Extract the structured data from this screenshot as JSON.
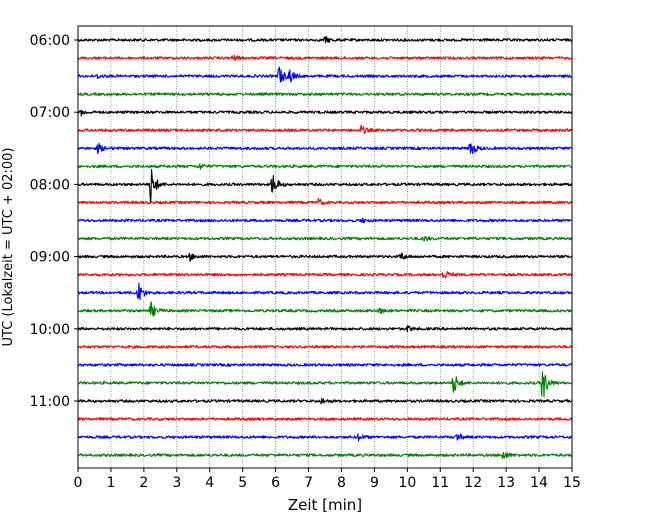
{
  "chart_data": {
    "type": "line",
    "subtype": "helicorder",
    "xlabel": "Zeit  [min]",
    "ylabel": "UTC (Lokalzeit = UTC + 02:00)",
    "xlim": [
      0,
      15
    ],
    "x_ticks": [
      0,
      1,
      2,
      3,
      4,
      5,
      6,
      7,
      8,
      9,
      10,
      11,
      12,
      13,
      14,
      15
    ],
    "grid": "vertical dotted lines at each minute",
    "row_interval_minutes": 15,
    "trace_colors": [
      "#000000",
      "#ff0000",
      "#0000ff",
      "#008000"
    ],
    "y_ticks": [
      "06:00",
      "07:00",
      "08:00",
      "09:00",
      "10:00",
      "11:00"
    ],
    "rows": [
      "06:00",
      "06:15",
      "06:30",
      "06:45",
      "07:00",
      "07:15",
      "07:30",
      "07:45",
      "08:00",
      "08:15",
      "08:30",
      "08:45",
      "09:00",
      "09:15",
      "09:30",
      "09:45",
      "10:00",
      "10:15",
      "10:30",
      "10:45",
      "11:00",
      "11:15",
      "11:30",
      "11:45"
    ],
    "events": [
      {
        "row": 0,
        "minute": 7.5,
        "amplitude": 0.35
      },
      {
        "row": 1,
        "minute": 4.7,
        "amplitude": 0.3
      },
      {
        "row": 2,
        "minute": 0.6,
        "amplitude": 0.25
      },
      {
        "row": 2,
        "minute": 6.1,
        "amplitude": 1.3
      },
      {
        "row": 2,
        "minute": 6.4,
        "amplitude": 0.9
      },
      {
        "row": 4,
        "minute": 0.1,
        "amplitude": 0.3
      },
      {
        "row": 5,
        "minute": 8.6,
        "amplitude": 0.5
      },
      {
        "row": 6,
        "minute": 0.6,
        "amplitude": 0.55
      },
      {
        "row": 6,
        "minute": 11.9,
        "amplitude": 1.1
      },
      {
        "row": 7,
        "minute": 3.7,
        "amplitude": 0.3
      },
      {
        "row": 8,
        "minute": 2.2,
        "amplitude": 2.3
      },
      {
        "row": 8,
        "minute": 5.9,
        "amplitude": 1.4
      },
      {
        "row": 9,
        "minute": 7.3,
        "amplitude": 0.35
      },
      {
        "row": 10,
        "minute": 8.6,
        "amplitude": 0.25
      },
      {
        "row": 11,
        "minute": 10.5,
        "amplitude": 0.3
      },
      {
        "row": 12,
        "minute": 3.4,
        "amplitude": 0.4
      },
      {
        "row": 12,
        "minute": 9.8,
        "amplitude": 0.45
      },
      {
        "row": 13,
        "minute": 11.1,
        "amplitude": 0.6
      },
      {
        "row": 14,
        "minute": 1.8,
        "amplitude": 1.6
      },
      {
        "row": 15,
        "minute": 2.2,
        "amplitude": 1.0
      },
      {
        "row": 15,
        "minute": 9.1,
        "amplitude": 0.4
      },
      {
        "row": 16,
        "minute": 10.0,
        "amplitude": 0.3
      },
      {
        "row": 19,
        "minute": 11.4,
        "amplitude": 1.3
      },
      {
        "row": 19,
        "minute": 14.1,
        "amplitude": 2.2
      },
      {
        "row": 20,
        "minute": 7.4,
        "amplitude": 0.3
      },
      {
        "row": 22,
        "minute": 8.5,
        "amplitude": 0.4
      },
      {
        "row": 22,
        "minute": 11.5,
        "amplitude": 0.45
      },
      {
        "row": 23,
        "minute": 12.9,
        "amplitude": 0.55
      }
    ]
  }
}
